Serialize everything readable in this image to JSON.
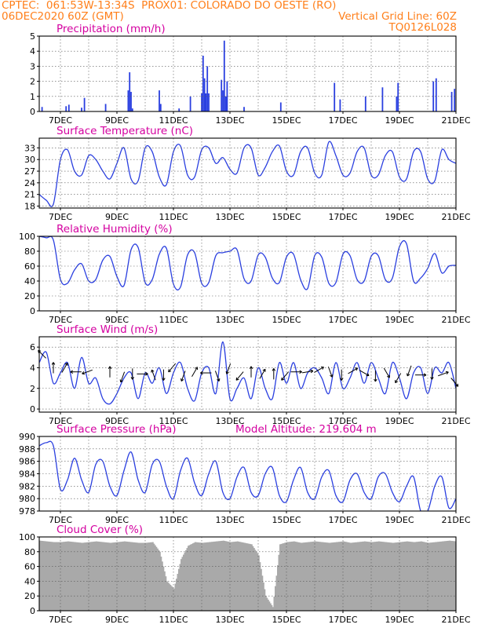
{
  "header": {
    "line1_left": "CPTEC:  061:53W-13:34S  PROX01: COLORADO DO OESTE (RO)",
    "line2_left": "06DEC2020 60Z (GMT)",
    "line2_right": "Vertical Grid Line: 60Z",
    "line3_right": "TQ0126L028"
  },
  "model_altitude_label": "Model Altitude: 219.604 m",
  "colors": {
    "header": "#ff7f1a",
    "panel_title": "#d400a0",
    "series": "#2a3fe0",
    "cloud": "#a9a9a9",
    "grid": "#555555"
  },
  "chart_data": [
    {
      "id": "precipitation",
      "type": "bar",
      "title": "Precipitation (mm/h)",
      "x_tick_labels": [
        "7DEC",
        "9DEC",
        "11DEC",
        "13DEC",
        "15DEC",
        "17DEC",
        "19DEC",
        "21DEC"
      ],
      "x_tick_days": [
        7,
        9,
        11,
        13,
        15,
        17,
        19,
        21
      ],
      "xlim": [
        6.25,
        21.0
      ],
      "ylim": [
        0,
        5
      ],
      "y_ticks": [
        0,
        1,
        2,
        3,
        4,
        5
      ],
      "x": [
        6.35,
        7.2,
        7.3,
        7.75,
        7.85,
        8.6,
        9.4,
        9.45,
        9.5,
        9.55,
        10.5,
        10.55,
        11.2,
        11.6,
        12.0,
        12.05,
        12.1,
        12.15,
        12.2,
        12.25,
        12.7,
        12.75,
        12.8,
        12.85,
        12.9,
        13.5,
        14.8,
        16.7,
        16.9,
        17.8,
        18.4,
        18.9,
        18.95,
        20.2,
        20.3,
        20.85,
        20.95
      ],
      "values": [
        0.3,
        0.35,
        0.45,
        0.25,
        0.9,
        0.5,
        1.4,
        2.6,
        1.3,
        0.2,
        1.4,
        0.5,
        0.2,
        1.0,
        1.2,
        3.7,
        2.2,
        1.2,
        3.0,
        1.2,
        2.1,
        1.4,
        4.7,
        1.0,
        2.0,
        0.3,
        0.6,
        1.9,
        0.8,
        1.0,
        1.6,
        1.0,
        1.9,
        2.0,
        2.2,
        1.3,
        1.5
      ]
    },
    {
      "id": "temperature",
      "type": "line",
      "title": "Surface Temperature (nC)",
      "x_tick_labels": [
        "7DEC",
        "9DEC",
        "11DEC",
        "13DEC",
        "15DEC",
        "17DEC",
        "19DEC",
        "21DEC"
      ],
      "x_tick_days": [
        7,
        9,
        11,
        13,
        15,
        17,
        19,
        21
      ],
      "xlim": [
        6.25,
        21.0
      ],
      "ylim": [
        17.5,
        35.5
      ],
      "y_ticks": [
        18,
        21,
        24,
        27,
        30,
        33
      ],
      "x": [
        6.25,
        6.5,
        6.75,
        7.0,
        7.25,
        7.5,
        7.75,
        8.0,
        8.25,
        8.5,
        8.75,
        9.0,
        9.25,
        9.5,
        9.75,
        10.0,
        10.25,
        10.5,
        10.75,
        11.0,
        11.25,
        11.5,
        11.75,
        12.0,
        12.25,
        12.5,
        12.75,
        13.0,
        13.25,
        13.5,
        13.75,
        14.0,
        14.25,
        14.5,
        14.75,
        15.0,
        15.25,
        15.5,
        15.75,
        16.0,
        16.25,
        16.5,
        16.75,
        17.0,
        17.25,
        17.5,
        17.75,
        18.0,
        18.25,
        18.5,
        18.75,
        19.0,
        19.25,
        19.5,
        19.75,
        20.0,
        20.25,
        20.5,
        20.75,
        21.0
      ],
      "values": [
        21,
        19.5,
        18.5,
        30,
        32.5,
        27,
        26,
        31,
        30,
        27,
        25,
        29,
        33,
        25,
        24.5,
        33,
        32,
        25.5,
        23.5,
        32,
        33.5,
        26,
        25.5,
        32.5,
        33,
        29,
        30.5,
        27.5,
        26.5,
        33,
        33,
        26,
        28,
        32,
        33.5,
        27,
        26,
        32,
        33,
        26.5,
        26,
        34.5,
        31,
        26,
        26.5,
        32,
        33,
        26,
        26,
        31,
        32,
        25.5,
        25,
        32,
        32,
        25,
        24.5,
        32.5,
        30,
        29
      ]
    },
    {
      "id": "humidity",
      "type": "line",
      "title": "Relative Humidity (%)",
      "x_tick_labels": [
        "7DEC",
        "9DEC",
        "11DEC",
        "13DEC",
        "15DEC",
        "17DEC",
        "19DEC",
        "21DEC"
      ],
      "x_tick_days": [
        7,
        9,
        11,
        13,
        15,
        17,
        19,
        21
      ],
      "xlim": [
        6.25,
        21.0
      ],
      "ylim": [
        0,
        100
      ],
      "y_ticks": [
        0,
        20,
        40,
        60,
        80,
        100
      ],
      "x": [
        6.25,
        6.5,
        6.75,
        7.0,
        7.25,
        7.5,
        7.75,
        8.0,
        8.25,
        8.5,
        8.75,
        9.0,
        9.25,
        9.5,
        9.75,
        10.0,
        10.25,
        10.5,
        10.75,
        11.0,
        11.25,
        11.5,
        11.75,
        12.0,
        12.25,
        12.5,
        12.75,
        13.0,
        13.25,
        13.5,
        13.75,
        14.0,
        14.25,
        14.5,
        14.75,
        15.0,
        15.25,
        15.5,
        15.75,
        16.0,
        16.25,
        16.5,
        16.75,
        17.0,
        17.25,
        17.5,
        17.75,
        18.0,
        18.25,
        18.5,
        18.75,
        19.0,
        19.25,
        19.5,
        19.75,
        20.0,
        20.25,
        20.5,
        20.75,
        21.0
      ],
      "values": [
        100,
        98,
        95,
        42,
        37,
        55,
        63,
        40,
        42,
        68,
        73,
        46,
        34,
        82,
        85,
        38,
        42,
        76,
        84,
        36,
        32,
        75,
        78,
        37,
        38,
        74,
        78,
        80,
        82,
        43,
        40,
        75,
        72,
        44,
        38,
        72,
        76,
        42,
        30,
        74,
        72,
        37,
        38,
        76,
        74,
        42,
        40,
        73,
        74,
        42,
        44,
        86,
        90,
        40,
        44,
        57,
        77,
        51,
        60,
        61
      ]
    },
    {
      "id": "wind",
      "type": "line",
      "title": "Surface Wind (m/s)",
      "x_tick_labels": [
        "7DEC",
        "9DEC",
        "11DEC",
        "13DEC",
        "15DEC",
        "17DEC",
        "19DEC",
        "21DEC"
      ],
      "x_tick_days": [
        7,
        9,
        11,
        13,
        15,
        17,
        19,
        21
      ],
      "xlim": [
        6.25,
        21.0
      ],
      "ylim": [
        -0.3,
        7.0
      ],
      "y_ticks": [
        0,
        2,
        4,
        6
      ],
      "x": [
        6.25,
        6.5,
        6.75,
        7.0,
        7.25,
        7.5,
        7.75,
        8.0,
        8.25,
        8.5,
        8.75,
        9.0,
        9.25,
        9.5,
        9.75,
        10.0,
        10.25,
        10.5,
        10.75,
        11.0,
        11.25,
        11.5,
        11.75,
        12.0,
        12.25,
        12.5,
        12.75,
        13.0,
        13.25,
        13.5,
        13.75,
        14.0,
        14.25,
        14.5,
        14.75,
        15.0,
        15.25,
        15.5,
        15.75,
        16.0,
        16.25,
        16.5,
        16.75,
        17.0,
        17.25,
        17.5,
        17.75,
        18.0,
        18.25,
        18.5,
        18.75,
        19.0,
        19.25,
        19.5,
        19.75,
        20.0,
        20.25,
        20.5,
        20.75,
        21.0
      ],
      "values": [
        4.5,
        5.5,
        2.5,
        3.5,
        4.5,
        2.0,
        5.0,
        2.5,
        3.0,
        1.0,
        0.5,
        1.5,
        3.0,
        3.5,
        1.0,
        3.5,
        2.5,
        4.0,
        1.5,
        3.5,
        4.5,
        2.0,
        0.8,
        3.5,
        4.0,
        1.5,
        6.5,
        1.0,
        2.0,
        3.0,
        1.0,
        4.0,
        2.0,
        1.0,
        4.5,
        2.5,
        4.5,
        2.0,
        3.5,
        4.0,
        3.0,
        1.5,
        4.5,
        2.0,
        3.0,
        4.5,
        2.5,
        4.5,
        3.0,
        1.5,
        4.5,
        3.0,
        1.0,
        3.5,
        4.0,
        1.5,
        4.0,
        3.5,
        4.5,
        2.0
      ],
      "arrow_x": [
        6.35,
        6.75,
        7.15,
        7.55,
        7.95,
        8.75,
        9.2,
        9.55,
        9.9,
        10.3,
        10.65,
        10.95,
        11.35,
        11.75,
        12.15,
        12.55,
        12.95,
        13.35,
        13.75,
        14.15,
        14.55,
        14.95,
        15.35,
        15.75,
        16.15,
        16.55,
        16.95,
        17.35,
        17.75,
        18.15,
        18.55,
        18.95,
        19.35,
        19.75,
        20.15,
        20.55,
        20.95
      ],
      "arrow_y": [
        5.3,
        4.0,
        4.0,
        3.6,
        3.6,
        3.6,
        3.1,
        3.4,
        3.4,
        3.3,
        3.3,
        4.0,
        3.2,
        3.6,
        3.5,
        3.2,
        3.9,
        3.2,
        3.6,
        3.4,
        3.4,
        3.2,
        3.6,
        3.6,
        3.8,
        3.6,
        3.3,
        3.7,
        3.5,
        3.2,
        3.5,
        3.0,
        3.7,
        3.3,
        3.4,
        3.4,
        2.6
      ],
      "arrow_dir_deg": [
        135,
        90,
        60,
        180,
        200,
        90,
        250,
        270,
        0,
        110,
        270,
        230,
        250,
        60,
        180,
        290,
        250,
        230,
        90,
        60,
        90,
        230,
        0,
        10,
        30,
        290,
        270,
        30,
        330,
        270,
        300,
        240,
        250,
        0,
        270,
        20,
        310
      ]
    },
    {
      "id": "pressure",
      "type": "line",
      "title": "Surface Pressure (hPa)",
      "x_tick_labels": [
        "7DEC",
        "9DEC",
        "11DEC",
        "13DEC",
        "15DEC",
        "17DEC",
        "19DEC",
        "21DEC"
      ],
      "x_tick_days": [
        7,
        9,
        11,
        13,
        15,
        17,
        19,
        21
      ],
      "xlim": [
        6.25,
        21.0
      ],
      "ylim": [
        978,
        990
      ],
      "y_ticks": [
        978,
        980,
        982,
        984,
        986,
        988,
        990
      ],
      "x": [
        6.25,
        6.5,
        6.75,
        7.0,
        7.25,
        7.5,
        7.75,
        8.0,
        8.25,
        8.5,
        8.75,
        9.0,
        9.25,
        9.5,
        9.75,
        10.0,
        10.25,
        10.5,
        10.75,
        11.0,
        11.25,
        11.5,
        11.75,
        12.0,
        12.25,
        12.5,
        12.75,
        13.0,
        13.25,
        13.5,
        13.75,
        14.0,
        14.25,
        14.5,
        14.75,
        15.0,
        15.25,
        15.5,
        15.75,
        16.0,
        16.25,
        16.5,
        16.75,
        17.0,
        17.25,
        17.5,
        17.75,
        18.0,
        18.25,
        18.5,
        18.75,
        19.0,
        19.25,
        19.5,
        19.75,
        20.0,
        20.25,
        20.5,
        20.75,
        21.0
      ],
      "values": [
        988.5,
        989.0,
        988.5,
        981.5,
        983.0,
        986.5,
        983.0,
        981.0,
        985.5,
        986.0,
        982.0,
        980.5,
        984.5,
        987.5,
        983.0,
        981.0,
        985.5,
        986.0,
        982.0,
        980.0,
        984.5,
        986.5,
        982.5,
        980.5,
        984.0,
        986.0,
        981.0,
        980.0,
        983.5,
        985.0,
        981.0,
        980.5,
        984.0,
        985.0,
        980.5,
        979.5,
        983.0,
        985.0,
        981.0,
        980.0,
        983.5,
        984.5,
        980.5,
        979.5,
        983.0,
        984.0,
        981.0,
        980.0,
        983.5,
        984.0,
        981.0,
        979.5,
        982.0,
        983.5,
        978.0,
        978.0,
        982.0,
        983.5,
        978.5,
        980.0
      ]
    },
    {
      "id": "cloud",
      "type": "area",
      "title": "Cloud Cover (%)",
      "x_tick_labels": [
        "7DEC",
        "9DEC",
        "11DEC",
        "13DEC",
        "15DEC",
        "17DEC",
        "19DEC",
        "21DEC"
      ],
      "x_tick_days": [
        7,
        9,
        11,
        13,
        15,
        17,
        19,
        21
      ],
      "xlim": [
        6.25,
        21.0
      ],
      "ylim": [
        0,
        100
      ],
      "y_ticks": [
        0,
        20,
        40,
        60,
        80,
        100
      ],
      "x": [
        6.25,
        6.5,
        6.75,
        7.0,
        7.25,
        7.5,
        7.75,
        8.0,
        8.25,
        8.5,
        8.75,
        9.0,
        9.25,
        9.5,
        9.75,
        10.0,
        10.25,
        10.5,
        10.75,
        11.0,
        11.25,
        11.5,
        11.75,
        12.0,
        12.25,
        12.5,
        12.75,
        13.0,
        13.25,
        13.5,
        13.75,
        14.0,
        14.25,
        14.5,
        14.75,
        15.0,
        15.25,
        15.5,
        15.75,
        16.0,
        16.25,
        16.5,
        16.75,
        17.0,
        17.25,
        17.5,
        17.75,
        18.0,
        18.25,
        18.5,
        18.75,
        19.0,
        19.25,
        19.5,
        19.75,
        20.0,
        20.25,
        20.5,
        20.75,
        21.0
      ],
      "values": [
        95,
        94,
        93,
        93,
        94,
        93,
        92,
        93,
        94,
        93,
        92,
        93,
        94,
        93,
        92,
        92,
        93,
        80,
        40,
        30,
        70,
        88,
        93,
        92,
        93,
        94,
        95,
        93,
        94,
        92,
        90,
        75,
        20,
        5,
        90,
        93,
        94,
        92,
        93,
        94,
        93,
        92,
        93,
        94,
        92,
        93,
        94,
        93,
        94,
        93,
        92,
        93,
        94,
        93,
        94,
        92,
        93,
        94,
        95,
        94
      ]
    }
  ]
}
